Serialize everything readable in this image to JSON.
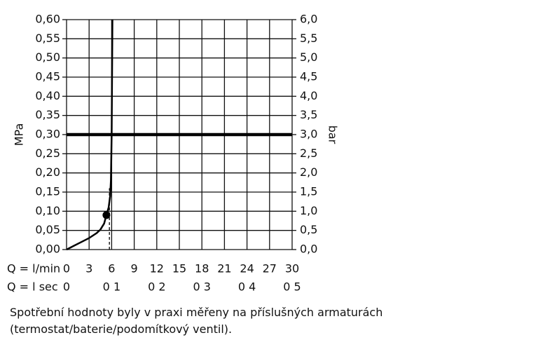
{
  "chart_data": {
    "type": "line",
    "y_label": "MPa",
    "y2_label": "bar",
    "x_label": "Q = l/min",
    "x2_label": "Q = l sec",
    "x": [
      0,
      1,
      2,
      3,
      4,
      4.5,
      5,
      5.3,
      5.6,
      5.8,
      5.9,
      6,
      6.1
    ],
    "values": [
      0,
      0.01,
      0.02,
      0.03,
      0.043,
      0.052,
      0.068,
      0.09,
      0.11,
      0.14,
      0.18,
      0.3,
      0.6
    ],
    "color": "#000000",
    "marker": {
      "x": 5.3,
      "y": 0.09
    },
    "hline": 0.3,
    "vline": {
      "x": 5.7,
      "y": 0.16
    },
    "grid": true,
    "xlim": [
      0,
      30
    ],
    "xticks": [
      0,
      3,
      6,
      9,
      12,
      15,
      18,
      21,
      24,
      27,
      30
    ],
    "x2lim": [
      0,
      0.5
    ],
    "x2ticks": [
      0,
      {
        "value": 0.1,
        "label": "0 1"
      },
      {
        "value": 0.2,
        "label": "0 2"
      },
      {
        "value": 0.3,
        "label": "0 3"
      },
      {
        "value": 0.4,
        "label": "0 4"
      },
      {
        "value": 0.5,
        "label": "0 5"
      }
    ],
    "ylim": [
      0,
      0.6
    ],
    "yticks": [
      {
        "value": 0,
        "label": "0,00"
      },
      {
        "value": 0.05,
        "label": "0,05"
      },
      {
        "value": 0.1,
        "label": "0,10"
      },
      {
        "value": 0.15,
        "label": "0,15"
      },
      {
        "value": 0.2,
        "label": "0,20"
      },
      {
        "value": 0.25,
        "label": "0,25"
      },
      {
        "value": 0.3,
        "label": "0,30"
      },
      {
        "value": 0.35,
        "label": "0,35"
      },
      {
        "value": 0.4,
        "label": "0,40"
      },
      {
        "value": 0.45,
        "label": "0,45"
      },
      {
        "value": 0.5,
        "label": "0,50"
      },
      {
        "value": 0.55,
        "label": "0,55"
      },
      {
        "value": 0.6,
        "label": "0,60"
      }
    ],
    "y2lim": [
      0,
      6
    ],
    "y2ticks": [
      {
        "value": 0,
        "label": "0,0"
      },
      {
        "value": 0.5,
        "label": "0,5"
      },
      {
        "value": 1,
        "label": "1,0"
      },
      {
        "value": 1.5,
        "label": "1,5"
      },
      {
        "value": 2,
        "label": "2,0"
      },
      {
        "value": 2.5,
        "label": "2,5"
      },
      {
        "value": 3,
        "label": "3,0"
      },
      {
        "value": 3.5,
        "label": "3,5"
      },
      {
        "value": 4,
        "label": "4,0"
      },
      {
        "value": 4.5,
        "label": "4,5"
      },
      {
        "value": 5,
        "label": "5,0"
      },
      {
        "value": 5.5,
        "label": "5,5"
      },
      {
        "value": 6,
        "label": "6,0"
      }
    ],
    "note": "Spotřební hodnoty byly v praxi měřeny na příslušných armaturách (termostat/baterie/podomítkový ventil)."
  }
}
